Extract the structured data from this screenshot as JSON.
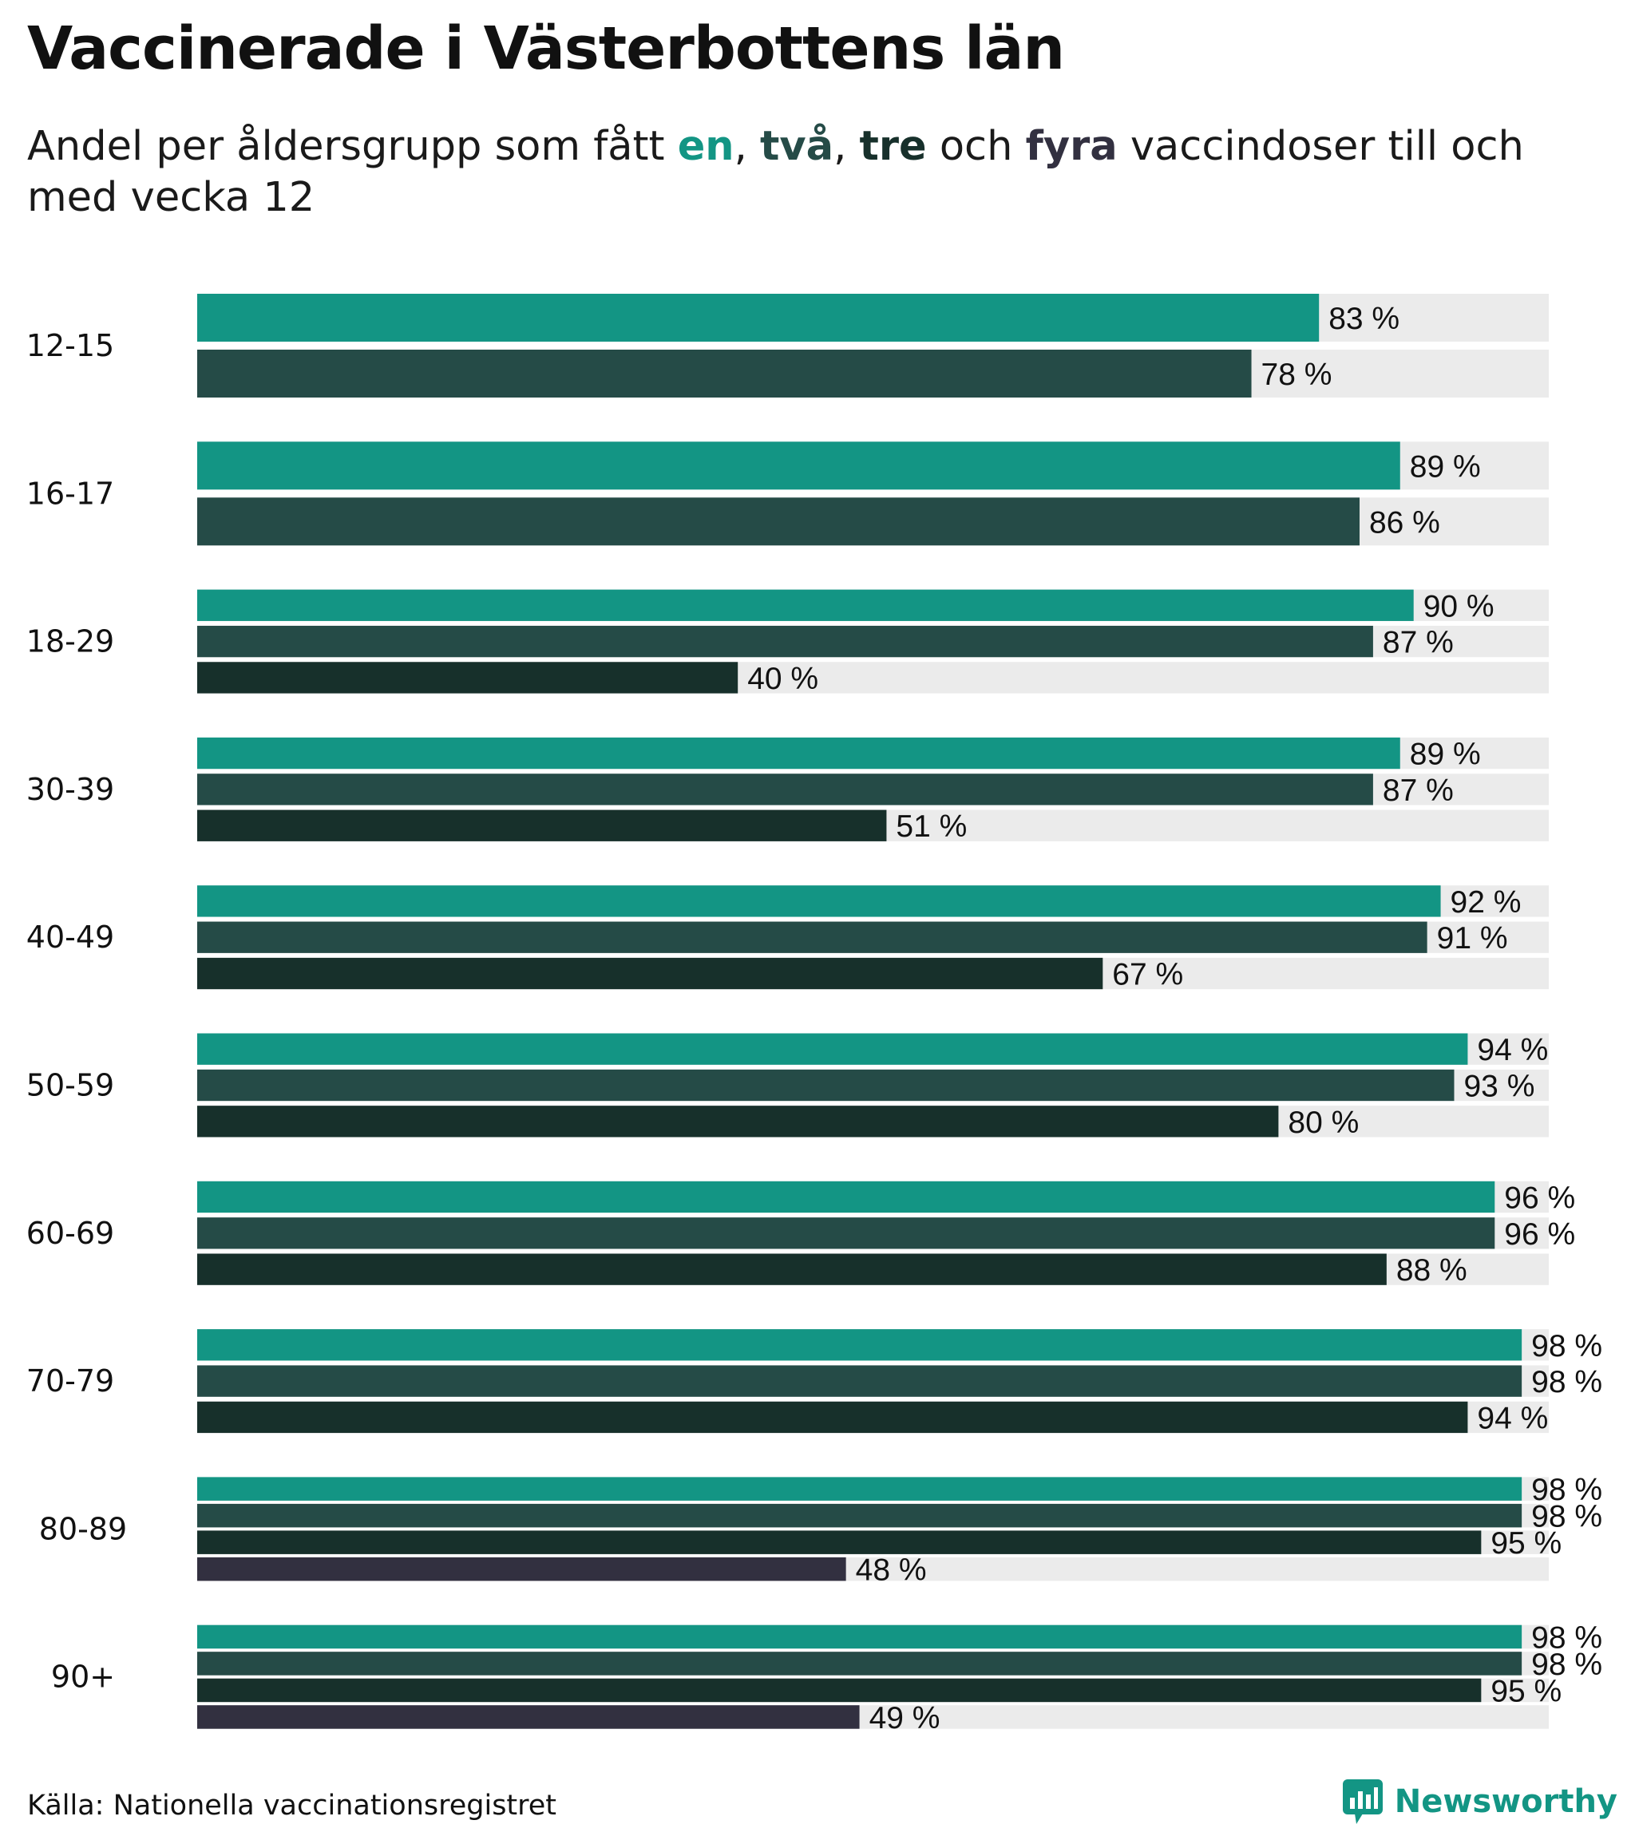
{
  "header": {
    "title": "Vaccinerade i Västerbottens län",
    "subtitle_parts": {
      "pre": "Andel per åldersgrupp som fått ",
      "dose1": "en",
      "sep1": ", ",
      "dose2": "två",
      "sep2": ", ",
      "dose3": "tre",
      "mid": " och ",
      "dose4": "fyra",
      "post": " vaccindoser till och med vecka 12"
    }
  },
  "footer": {
    "source": "Källa: Nationella vaccinationsregistret",
    "brand": "Newsworthy"
  },
  "chart_data": {
    "type": "bar",
    "orientation": "horizontal",
    "xlim": [
      0,
      100
    ],
    "value_suffix": " %",
    "track_color": "#ebebeb",
    "series_colors": [
      "#139584",
      "#254b47",
      "#17302b",
      "#323040"
    ],
    "categories": [
      "12-15",
      "16-17",
      "18-29",
      "30-39",
      "40-49",
      "50-59",
      "60-69",
      "70-79",
      "80-89",
      "90+"
    ],
    "groups": [
      {
        "category": "12-15",
        "values": [
          83,
          78
        ]
      },
      {
        "category": "16-17",
        "values": [
          89,
          86
        ]
      },
      {
        "category": "18-29",
        "values": [
          90,
          87,
          40
        ]
      },
      {
        "category": "30-39",
        "values": [
          89,
          87,
          51
        ]
      },
      {
        "category": "40-49",
        "values": [
          92,
          91,
          67
        ]
      },
      {
        "category": "50-59",
        "values": [
          94,
          93,
          80
        ]
      },
      {
        "category": "60-69",
        "values": [
          96,
          96,
          88
        ]
      },
      {
        "category": "70-79",
        "values": [
          98,
          98,
          94
        ]
      },
      {
        "category": "80-89",
        "values": [
          98,
          98,
          95,
          48
        ]
      },
      {
        "category": "90+",
        "values": [
          98,
          98,
          95,
          49
        ]
      }
    ]
  }
}
